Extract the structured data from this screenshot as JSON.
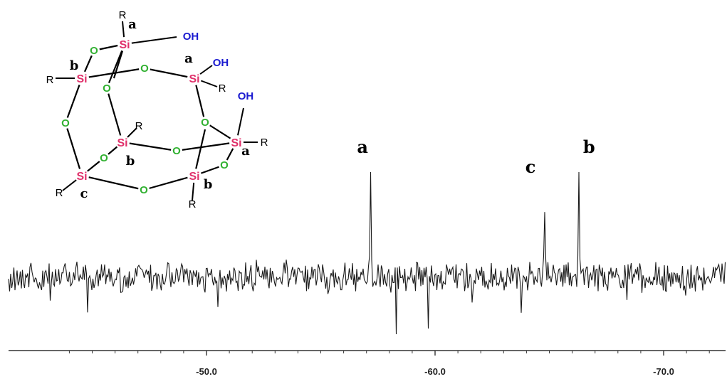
{
  "chart_data": {
    "type": "line",
    "title": "",
    "xlabel": "",
    "ylabel": "",
    "xlim": [
      -44.0,
      -73.0
    ],
    "x_ticks": [
      -50.0,
      -60.0,
      -70.0
    ],
    "x_tick_labels": [
      "-50.0",
      "-60.0",
      "-70.0"
    ],
    "grid": false,
    "peaks": [
      {
        "label": "a",
        "x": -57.2,
        "height": 1.0
      },
      {
        "label": "c",
        "x": -64.8,
        "height": 0.62
      },
      {
        "label": "b",
        "x": -66.3,
        "height": 1.0
      }
    ]
  },
  "structure": {
    "atoms": [
      {
        "id": "Si1",
        "text": "Si",
        "label": "a",
        "subst": "R"
      },
      {
        "id": "Si2",
        "text": "Si",
        "label": "b",
        "subst": "R"
      },
      {
        "id": "Si3",
        "text": "Si",
        "label": "a",
        "subst": "R"
      },
      {
        "id": "Si4",
        "text": "Si",
        "label": "b",
        "subst": "R"
      },
      {
        "id": "Si5",
        "text": "Si",
        "label": "a",
        "subst": "R"
      },
      {
        "id": "Si6",
        "text": "Si",
        "label": "c",
        "subst": "R"
      },
      {
        "id": "Si7",
        "text": "Si",
        "label": "b",
        "subst": "R"
      }
    ],
    "hydroxyl_text": "OH",
    "oxygen_text": "O",
    "colors": {
      "si": "#e0306a",
      "oxygen": "#30b030",
      "hydroxyl": "#1a1ad0",
      "bond": "#000000"
    }
  }
}
